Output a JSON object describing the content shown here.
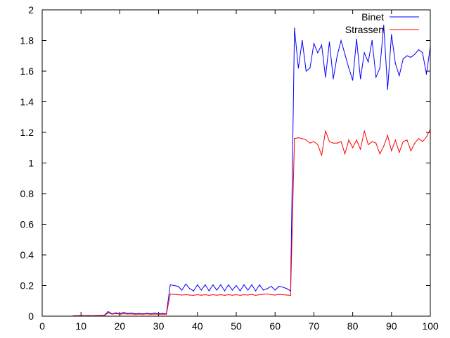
{
  "chart_data": {
    "type": "line",
    "title": "",
    "xlabel": "",
    "ylabel": "",
    "xlim": [
      0,
      100
    ],
    "ylim": [
      0,
      2
    ],
    "grid": false,
    "legend_position": "top-right",
    "x_ticks": [
      "0",
      "10",
      "20",
      "30",
      "40",
      "50",
      "60",
      "70",
      "80",
      "90",
      "100"
    ],
    "y_ticks": [
      "0",
      "0.2",
      "0.4",
      "0.6",
      "0.8",
      "1",
      "1.2",
      "1.4",
      "1.6",
      "1.8",
      "2"
    ],
    "series": [
      {
        "name": "Binet",
        "color": "#0000ff",
        "x": [
          8,
          9,
          10,
          11,
          12,
          13,
          14,
          15,
          16,
          17,
          18,
          19,
          20,
          21,
          22,
          23,
          24,
          25,
          26,
          27,
          28,
          29,
          30,
          31,
          32,
          33,
          34,
          35,
          36,
          37,
          38,
          39,
          40,
          41,
          42,
          43,
          44,
          45,
          46,
          47,
          48,
          49,
          50,
          51,
          52,
          53,
          54,
          55,
          56,
          57,
          58,
          59,
          60,
          61,
          62,
          63,
          64,
          65,
          66,
          67,
          68,
          69,
          70,
          71,
          72,
          73,
          74,
          75,
          76,
          77,
          78,
          79,
          80,
          81,
          82,
          83,
          84,
          85,
          86,
          87,
          88,
          89,
          90,
          91,
          92,
          93,
          94,
          95,
          96,
          97,
          98,
          99,
          100
        ],
        "y": [
          0.003,
          0.003,
          0.004,
          0.003,
          0.004,
          0.003,
          0.004,
          0.005,
          0.006,
          0.03,
          0.015,
          0.022,
          0.016,
          0.024,
          0.018,
          0.02,
          0.016,
          0.018,
          0.015,
          0.019,
          0.016,
          0.02,
          0.015,
          0.018,
          0.016,
          0.205,
          0.2,
          0.195,
          0.17,
          0.21,
          0.18,
          0.165,
          0.205,
          0.17,
          0.205,
          0.165,
          0.205,
          0.17,
          0.205,
          0.165,
          0.205,
          0.17,
          0.2,
          0.165,
          0.205,
          0.17,
          0.205,
          0.165,
          0.205,
          0.17,
          0.18,
          0.195,
          0.17,
          0.195,
          0.19,
          0.18,
          0.165,
          1.88,
          1.62,
          1.8,
          1.6,
          1.62,
          1.78,
          1.72,
          1.77,
          1.56,
          1.79,
          1.55,
          1.7,
          1.8,
          1.71,
          1.62,
          1.54,
          1.81,
          1.55,
          1.72,
          1.66,
          1.8,
          1.56,
          1.62,
          1.9,
          1.48,
          1.84,
          1.65,
          1.57,
          1.68,
          1.7,
          1.69,
          1.71,
          1.74,
          1.72,
          1.58,
          1.76
        ]
      },
      {
        "name": "Strassen",
        "color": "#ff0000",
        "x": [
          8,
          9,
          10,
          11,
          12,
          13,
          14,
          15,
          16,
          17,
          18,
          19,
          20,
          21,
          22,
          23,
          24,
          25,
          26,
          27,
          28,
          29,
          30,
          31,
          32,
          33,
          34,
          35,
          36,
          37,
          38,
          39,
          40,
          41,
          42,
          43,
          44,
          45,
          46,
          47,
          48,
          49,
          50,
          51,
          52,
          53,
          54,
          55,
          56,
          57,
          58,
          59,
          60,
          61,
          62,
          63,
          64,
          65,
          66,
          67,
          68,
          69,
          70,
          71,
          72,
          73,
          74,
          75,
          76,
          77,
          78,
          79,
          80,
          81,
          82,
          83,
          84,
          85,
          86,
          87,
          88,
          89,
          90,
          91,
          92,
          93,
          94,
          95,
          96,
          97,
          98,
          99,
          100
        ],
        "y": [
          0.002,
          0.003,
          0.003,
          0.003,
          0.002,
          0.003,
          0.003,
          0.004,
          0.004,
          0.022,
          0.013,
          0.017,
          0.012,
          0.016,
          0.014,
          0.015,
          0.012,
          0.014,
          0.012,
          0.015,
          0.012,
          0.014,
          0.012,
          0.013,
          0.012,
          0.145,
          0.142,
          0.14,
          0.138,
          0.14,
          0.138,
          0.136,
          0.14,
          0.137,
          0.14,
          0.136,
          0.14,
          0.137,
          0.14,
          0.136,
          0.14,
          0.137,
          0.14,
          0.136,
          0.14,
          0.138,
          0.142,
          0.136,
          0.14,
          0.143,
          0.145,
          0.14,
          0.138,
          0.142,
          0.14,
          0.138,
          0.136,
          1.16,
          1.165,
          1.16,
          1.15,
          1.13,
          1.14,
          1.12,
          1.05,
          1.21,
          1.14,
          1.13,
          1.13,
          1.14,
          1.06,
          1.15,
          1.1,
          1.15,
          1.09,
          1.21,
          1.12,
          1.14,
          1.13,
          1.06,
          1.11,
          1.18,
          1.08,
          1.15,
          1.07,
          1.14,
          1.15,
          1.08,
          1.13,
          1.16,
          1.14,
          1.17,
          1.22
        ]
      }
    ]
  }
}
